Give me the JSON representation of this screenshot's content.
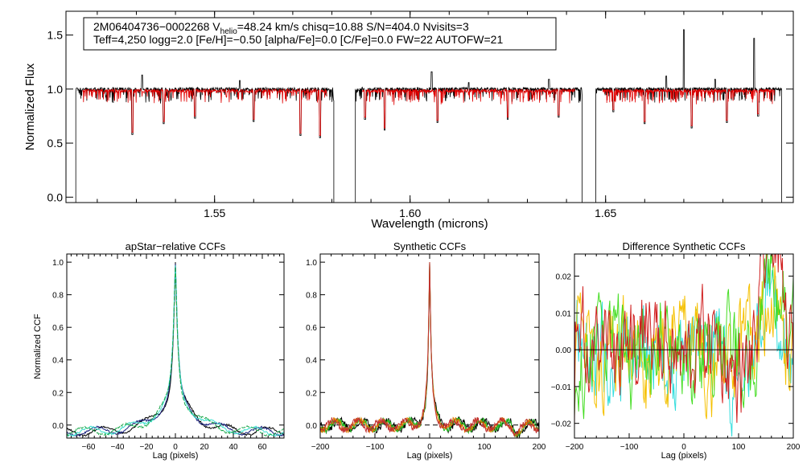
{
  "chart_data": [
    {
      "type": "line",
      "title": "",
      "xlabel": "Wavelength (microns)",
      "ylabel": "Normalized Flux",
      "xlim": [
        1.512,
        1.698
      ],
      "ylim": [
        -0.05,
        1.72
      ],
      "xticks": [
        1.55,
        1.6,
        1.65
      ],
      "xtick_labels": [
        "1.55",
        "1.60",
        "1.65"
      ],
      "yticks": [
        0.0,
        0.5,
        1.0,
        1.5
      ],
      "ytick_labels": [
        "0.0",
        "0.5",
        "1.0",
        "1.5"
      ],
      "annotation": {
        "line1_prefix": "2M06404736−0002268  V",
        "line1_sub": "helio",
        "line1_suffix": "=48.24 km/s  chisq=10.88  S/N=404.0  Nvisits=3",
        "line2": "Teff=4,250 logg=2.0 [Fe/H]=−0.50 [alpha/Fe]=0.0 [C/Fe]=0.0 FW=22 AUTOFW=21"
      },
      "chips": [
        [
          1.5145,
          1.5805
        ],
        [
          1.586,
          1.644
        ],
        [
          1.6475,
          1.695
        ]
      ],
      "series": [
        {
          "name": "observed",
          "color": "#000000",
          "continuum": 1.0
        },
        {
          "name": "model",
          "color": "#e00000",
          "continuum": 0.985
        }
      ],
      "emission_spikes": [
        {
          "x": 1.5315,
          "y": 1.13
        },
        {
          "x": 1.5565,
          "y": 1.08
        },
        {
          "x": 1.6055,
          "y": 1.16
        },
        {
          "x": 1.615,
          "y": 1.06
        },
        {
          "x": 1.6355,
          "y": 1.09
        },
        {
          "x": 1.6655,
          "y": 1.12
        },
        {
          "x": 1.67,
          "y": 1.55
        },
        {
          "x": 1.678,
          "y": 1.09
        },
        {
          "x": 1.688,
          "y": 1.47
        }
      ],
      "absorption_lines": [
        {
          "x": 1.529,
          "y": 0.58
        },
        {
          "x": 1.537,
          "y": 0.68
        },
        {
          "x": 1.545,
          "y": 0.73
        },
        {
          "x": 1.56,
          "y": 0.7
        },
        {
          "x": 1.572,
          "y": 0.57
        },
        {
          "x": 1.577,
          "y": 0.55
        },
        {
          "x": 1.5885,
          "y": 0.72
        },
        {
          "x": 1.5935,
          "y": 0.62
        },
        {
          "x": 1.607,
          "y": 0.69
        },
        {
          "x": 1.625,
          "y": 0.72
        },
        {
          "x": 1.638,
          "y": 0.74
        },
        {
          "x": 1.652,
          "y": 0.79
        },
        {
          "x": 1.66,
          "y": 0.68
        },
        {
          "x": 1.672,
          "y": 0.64
        },
        {
          "x": 1.681,
          "y": 0.69
        },
        {
          "x": 1.689,
          "y": 0.75
        }
      ]
    },
    {
      "type": "line",
      "title": "apStar−relative CCFs",
      "xlabel": "Lag (pixels)",
      "ylabel": "Normalized CCF",
      "xlim": [
        -75,
        75
      ],
      "ylim": [
        -0.08,
        1.05
      ],
      "xticks": [
        -60,
        -40,
        -20,
        0,
        20,
        40,
        60
      ],
      "xtick_labels": [
        "−60",
        "−40",
        "−20",
        "0",
        "20",
        "40",
        "60"
      ],
      "yticks": [
        0.0,
        0.2,
        0.4,
        0.6,
        0.8,
        1.0
      ],
      "ytick_labels": [
        "0.0",
        "0.2",
        "0.4",
        "0.6",
        "0.8",
        "1.0"
      ],
      "peak": {
        "x": 0,
        "y": 1.0
      },
      "series": [
        {
          "name": "ccf-black",
          "color": "#000000",
          "wing": 0.105
        },
        {
          "name": "ccf-navy",
          "color": "#1a237e",
          "wing": 0.11
        },
        {
          "name": "ccf-cyan",
          "color": "#40e0d0",
          "wing": 0.125
        },
        {
          "name": "ccf-green",
          "color": "#1aa84a",
          "wing": 0.115
        }
      ]
    },
    {
      "type": "line",
      "title": "Synthetic CCFs",
      "xlabel": "Lag (pixels)",
      "ylabel": "",
      "xlim": [
        -200,
        200
      ],
      "ylim": [
        -0.08,
        1.05
      ],
      "xticks": [
        -200,
        -100,
        0,
        100,
        200
      ],
      "xtick_labels": [
        "−200",
        "−100",
        "0",
        "100",
        "200"
      ],
      "yticks": [
        0.0,
        0.2,
        0.4,
        0.6,
        0.8,
        1.0
      ],
      "ytick_labels": [
        "0.0",
        "0.2",
        "0.4",
        "0.6",
        "0.8",
        "1.0"
      ],
      "peak": {
        "x": 0,
        "y": 1.0
      },
      "reference_line": {
        "y": 0.0,
        "style": "dashed"
      },
      "series": [
        {
          "name": "syn-black",
          "color": "#000000"
        },
        {
          "name": "syn-green",
          "color": "#22bb22"
        },
        {
          "name": "syn-orange",
          "color": "#e07800"
        },
        {
          "name": "syn-red",
          "color": "#c03030"
        }
      ]
    },
    {
      "type": "line",
      "title": "Difference Synthetic CCFs",
      "xlabel": "Lag (pixels)",
      "ylabel": "",
      "xlim": [
        -200,
        200
      ],
      "ylim": [
        -0.024,
        0.026
      ],
      "xticks": [
        -200,
        -100,
        0,
        100,
        200
      ],
      "xtick_labels": [
        "−200",
        "−100",
        "0",
        "100",
        "200"
      ],
      "yticks": [
        -0.02,
        -0.01,
        0.0,
        0.01,
        0.02
      ],
      "ytick_labels": [
        "−0.02",
        "−0.01",
        "0.00",
        "0.01",
        "0.02"
      ],
      "reference_line": {
        "y": 0.0,
        "style": "solid"
      },
      "peak_region": {
        "x": 160,
        "y": 0.025
      },
      "series": [
        {
          "name": "diff-cyan",
          "color": "#33dddd"
        },
        {
          "name": "diff-yellow",
          "color": "#f5c000"
        },
        {
          "name": "diff-green",
          "color": "#44dd22"
        },
        {
          "name": "diff-red",
          "color": "#d02020"
        }
      ]
    }
  ]
}
